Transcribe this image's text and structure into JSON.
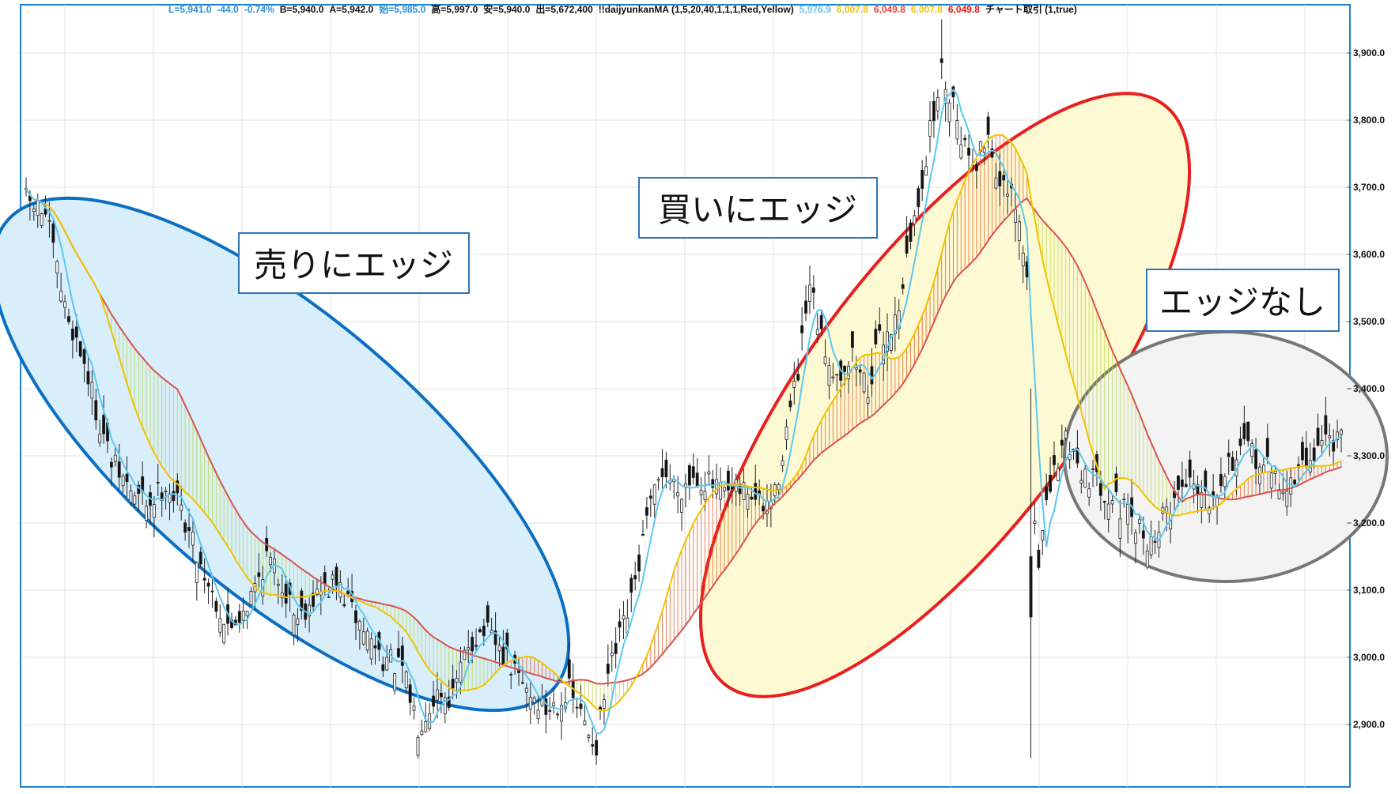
{
  "header": {
    "items": [
      {
        "text": "L=5,941.0",
        "color": "#2e8fd6"
      },
      {
        "text": "-44.0",
        "color": "#2e8fd6"
      },
      {
        "text": "-0.74%",
        "color": "#2e8fd6"
      },
      {
        "text": "B=5,940.0",
        "color": "#111111"
      },
      {
        "text": "A=5,942.0",
        "color": "#111111"
      },
      {
        "text": "始=5,985.0",
        "color": "#2e8fd6"
      },
      {
        "text": "高=5,997.0",
        "color": "#111111"
      },
      {
        "text": "安=5,940.0",
        "color": "#111111"
      },
      {
        "text": "出=5,672,400",
        "color": "#111111"
      },
      {
        "text": "!!daijyunkanMA (1,5,20,40,1,1,1,Red,Yellow)",
        "color": "#111111"
      },
      {
        "text": "5,976.9",
        "color": "#5bc8f0"
      },
      {
        "text": "6,007.8",
        "color": "#f2c200"
      },
      {
        "text": "6,049.8",
        "color": "#e8413a"
      },
      {
        "text": "6,007.8",
        "color": "#f2c200"
      },
      {
        "text": "6,049.8",
        "color": "#e8130b"
      },
      {
        "text": "チャート取引 (1,true)",
        "color": "#111111"
      }
    ]
  },
  "callouts": {
    "sell": "売りにエッジ",
    "buy": "買いにエッジ",
    "none": "エッジなし"
  },
  "colors": {
    "frame": "#1a7fd0",
    "grid": "#e2e2e2",
    "ma_fast": "#5bc8f0",
    "ma_mid": "#f2c200",
    "ma_slow": "#d9534f",
    "sell_fill": "#d8eefb",
    "sell_stroke": "#0a6fc2",
    "buy_fill": "#fdfad3",
    "buy_stroke": "#e81f1f",
    "none_fill": "#f3f3f3",
    "none_stroke": "#777777",
    "band_up": "#e8541e",
    "band_down": "#b7d83a",
    "candle_up": "#ffffff",
    "candle_down": "#111111"
  },
  "chart_data": {
    "type": "candlestick",
    "y_ticks": [
      "3,900.0",
      "3,800.0",
      "3,700.0",
      "3,600.0",
      "3,500.0",
      "3,400.0",
      "3,300.0",
      "3,200.0",
      "3,100.0",
      "3,000.0",
      "2,900.0"
    ],
    "y_tick_values": [
      3900,
      3800,
      3700,
      3600,
      3500,
      3400,
      3300,
      3200,
      3100,
      3000,
      2900
    ],
    "ylim": [
      2835,
      3955
    ],
    "grid": true,
    "series_names": [
      "5,976.9",
      "6,007.8",
      "6,049.8"
    ],
    "close_path": [
      [
        0,
        3680
      ],
      [
        5,
        3660
      ],
      [
        10,
        3520
      ],
      [
        15,
        3440
      ],
      [
        18,
        3370
      ],
      [
        22,
        3290
      ],
      [
        28,
        3240
      ],
      [
        32,
        3230
      ],
      [
        36,
        3260
      ],
      [
        40,
        3220
      ],
      [
        45,
        3140
      ],
      [
        52,
        3040
      ],
      [
        58,
        3090
      ],
      [
        62,
        3150
      ],
      [
        66,
        3110
      ],
      [
        70,
        3060
      ],
      [
        74,
        3090
      ],
      [
        80,
        3110
      ],
      [
        86,
        3050
      ],
      [
        92,
        3000
      ],
      [
        97,
        2980
      ],
      [
        101,
        2900
      ],
      [
        106,
        2950
      ],
      [
        110,
        2940
      ],
      [
        114,
        3020
      ],
      [
        118,
        3040
      ],
      [
        122,
        3010
      ],
      [
        128,
        2960
      ],
      [
        134,
        2920
      ],
      [
        140,
        2950
      ],
      [
        144,
        2900
      ],
      [
        147,
        2870
      ],
      [
        150,
        2970
      ],
      [
        156,
        3080
      ],
      [
        160,
        3200
      ],
      [
        164,
        3280
      ],
      [
        168,
        3250
      ],
      [
        172,
        3270
      ],
      [
        176,
        3260
      ],
      [
        180,
        3240
      ],
      [
        186,
        3250
      ],
      [
        190,
        3220
      ],
      [
        193,
        3240
      ],
      [
        196,
        3340
      ],
      [
        199,
        3420
      ],
      [
        202,
        3550
      ],
      [
        205,
        3470
      ],
      [
        209,
        3420
      ],
      [
        213,
        3450
      ],
      [
        217,
        3400
      ],
      [
        220,
        3470
      ],
      [
        224,
        3500
      ],
      [
        227,
        3590
      ],
      [
        230,
        3680
      ],
      [
        233,
        3780
      ],
      [
        236,
        3870
      ],
      [
        239,
        3830
      ],
      [
        242,
        3760
      ],
      [
        245,
        3740
      ],
      [
        248,
        3780
      ],
      [
        251,
        3700
      ],
      [
        254,
        3680
      ],
      [
        256,
        3640
      ],
      [
        258,
        3560
      ],
      [
        259,
        3270
      ],
      [
        261,
        3150
      ],
      [
        264,
        3250
      ],
      [
        268,
        3330
      ],
      [
        272,
        3280
      ],
      [
        276,
        3260
      ],
      [
        280,
        3240
      ],
      [
        285,
        3200
      ],
      [
        290,
        3170
      ],
      [
        295,
        3230
      ],
      [
        300,
        3270
      ],
      [
        305,
        3240
      ],
      [
        310,
        3290
      ],
      [
        315,
        3310
      ],
      [
        320,
        3280
      ],
      [
        325,
        3250
      ],
      [
        330,
        3290
      ],
      [
        335,
        3330
      ],
      [
        339,
        3320
      ]
    ],
    "bars": 340
  }
}
